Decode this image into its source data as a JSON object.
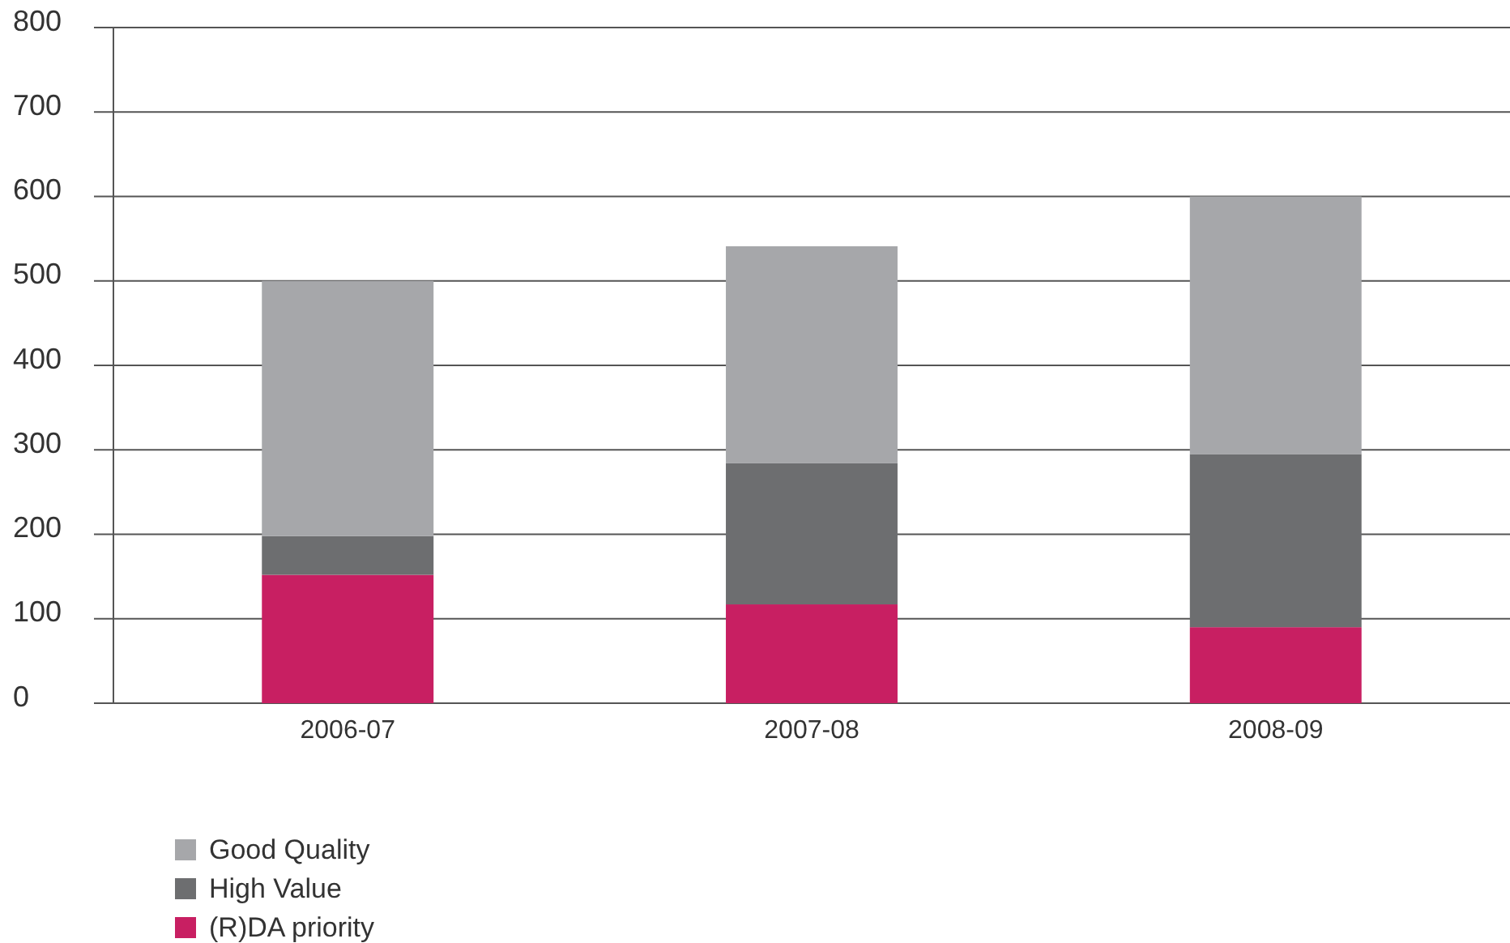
{
  "chart_data": {
    "type": "bar",
    "stacked": true,
    "categories": [
      "2006-07",
      "2007-08",
      "2008-09"
    ],
    "series": [
      {
        "name": "(R)DA priority",
        "color": "#c81f62",
        "values": [
          152,
          117,
          90
        ]
      },
      {
        "name": "High Value",
        "color": "#6d6e70",
        "values": [
          46,
          167,
          205
        ]
      },
      {
        "name": "Good Quality",
        "color": "#a6a7aa",
        "values": [
          302,
          257,
          305
        ]
      }
    ],
    "ylim": [
      0,
      800
    ],
    "yticks": [
      0,
      100,
      200,
      300,
      400,
      500,
      600,
      700,
      800
    ],
    "grid": "y",
    "legend": "bottom left"
  }
}
